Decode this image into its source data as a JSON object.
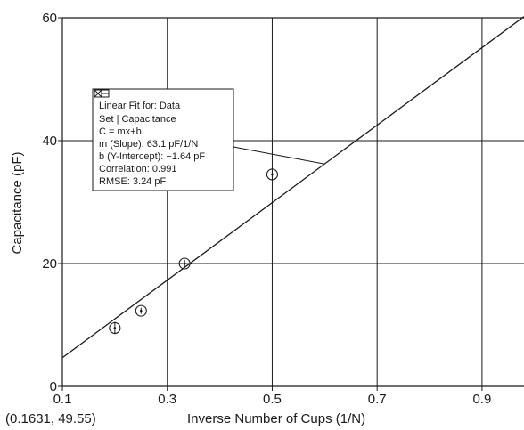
{
  "chart_data": {
    "type": "scatter",
    "xlabel": "Inverse Number of Cups (1/N)",
    "ylabel": "Capacitance (pF)",
    "xlim": [
      0.1,
      0.98
    ],
    "ylim": [
      0,
      60
    ],
    "x_ticks": [
      "0.1",
      "0.3",
      "0.5",
      "0.7",
      "0.9"
    ],
    "x_tick_values": [
      0.1,
      0.3,
      0.5,
      0.7,
      0.9
    ],
    "y_ticks": [
      "0",
      "20",
      "40",
      "60"
    ],
    "y_tick_values": [
      0,
      20,
      40,
      60
    ],
    "grid": true,
    "series": [
      {
        "type": "scatter",
        "x": [
          0.2,
          0.25,
          0.333,
          0.5
        ],
        "y": [
          9.5,
          12.3,
          20.0,
          34.5
        ],
        "y_err": [
          1.0,
          0.5,
          0.6,
          0.6
        ]
      },
      {
        "type": "line",
        "slope": 63.1,
        "intercept": -1.64,
        "x_range": [
          0.1,
          0.98
        ]
      }
    ],
    "annotation_point": {
      "x": 0.6,
      "y": 36.2
    },
    "fit_box": {
      "lines": [
        "Linear Fit for: Data",
        "Set | Capacitance",
        "C = mx+b",
        "m (Slope): 63.1 pF/1/N",
        "b (Y-Intercept): −1.64 pF",
        "Correlation: 0.991",
        "RMSE: 3.24 pF"
      ]
    },
    "cursor_readout": "(0.1631, 49.55)"
  }
}
